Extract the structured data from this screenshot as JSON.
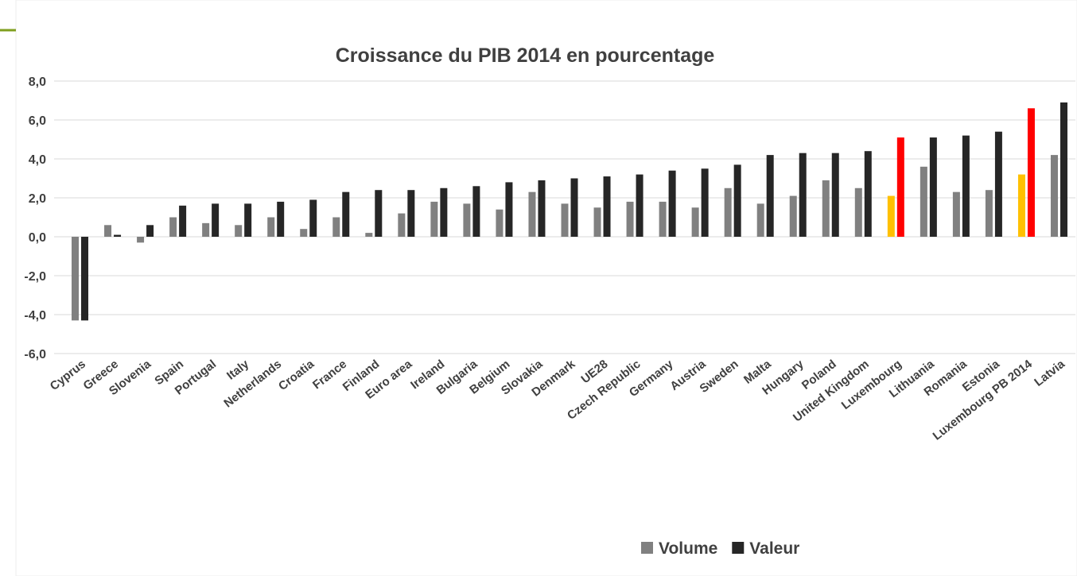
{
  "chart_data": {
    "type": "bar",
    "title": "Croissance du PIB 2014 en pourcentage",
    "categories": [
      "Cyprus",
      "Greece",
      "Slovenia",
      "Spain",
      "Portugal",
      "Italy",
      "Netherlands",
      "Croatia",
      "France",
      "Finland",
      "Euro area",
      "Ireland",
      "Bulgaria",
      "Belgium",
      "Slovakia",
      "Denmark",
      "UE28",
      "Czech Republic",
      "Germany",
      "Austria",
      "Sweden",
      "Malta",
      "Hungary",
      "Poland",
      "United Kingdom",
      "Luxembourg",
      "Lithuania",
      "Romania",
      "Estonia",
      "Luxembourg PB 2014",
      "Latvia"
    ],
    "series": [
      {
        "name": "Volume",
        "color": "#808080",
        "colors": [
          "#808080",
          "#808080",
          "#808080",
          "#808080",
          "#808080",
          "#808080",
          "#808080",
          "#808080",
          "#808080",
          "#808080",
          "#808080",
          "#808080",
          "#808080",
          "#808080",
          "#808080",
          "#808080",
          "#808080",
          "#808080",
          "#808080",
          "#808080",
          "#808080",
          "#808080",
          "#808080",
          "#808080",
          "#808080",
          "#ffc000",
          "#808080",
          "#808080",
          "#808080",
          "#ffc000",
          "#808080"
        ],
        "values": [
          -4.3,
          0.6,
          -0.3,
          1.0,
          0.7,
          0.6,
          1.0,
          0.4,
          1.0,
          0.2,
          1.2,
          1.8,
          1.7,
          1.4,
          2.3,
          1.7,
          1.5,
          1.8,
          1.8,
          1.5,
          2.5,
          1.7,
          2.1,
          2.9,
          2.5,
          2.1,
          3.6,
          2.3,
          2.4,
          3.2,
          4.2
        ]
      },
      {
        "name": "Valeur",
        "color": "#262626",
        "colors": [
          "#262626",
          "#262626",
          "#262626",
          "#262626",
          "#262626",
          "#262626",
          "#262626",
          "#262626",
          "#262626",
          "#262626",
          "#262626",
          "#262626",
          "#262626",
          "#262626",
          "#262626",
          "#262626",
          "#262626",
          "#262626",
          "#262626",
          "#262626",
          "#262626",
          "#262626",
          "#262626",
          "#262626",
          "#262626",
          "#ff0000",
          "#262626",
          "#262626",
          "#262626",
          "#ff0000",
          "#262626"
        ],
        "values": [
          -4.3,
          0.1,
          0.6,
          1.6,
          1.7,
          1.7,
          1.8,
          1.9,
          2.3,
          2.4,
          2.4,
          2.5,
          2.6,
          2.8,
          2.9,
          3.0,
          3.1,
          3.2,
          3.4,
          3.5,
          3.7,
          4.2,
          4.3,
          4.3,
          4.4,
          5.1,
          5.1,
          5.2,
          5.4,
          6.6,
          6.9
        ]
      }
    ],
    "ylim": [
      -6,
      8
    ],
    "yticks": [
      {
        "value": -6,
        "label": "-6,0"
      },
      {
        "value": -4,
        "label": "-4,0"
      },
      {
        "value": -2,
        "label": "-2,0"
      },
      {
        "value": 0,
        "label": "0,0"
      },
      {
        "value": 2,
        "label": "2,0"
      },
      {
        "value": 4,
        "label": "4,0"
      },
      {
        "value": 6,
        "label": "6,0"
      },
      {
        "value": 8,
        "label": "8,0"
      }
    ],
    "grid": true,
    "legend": "bottom"
  }
}
